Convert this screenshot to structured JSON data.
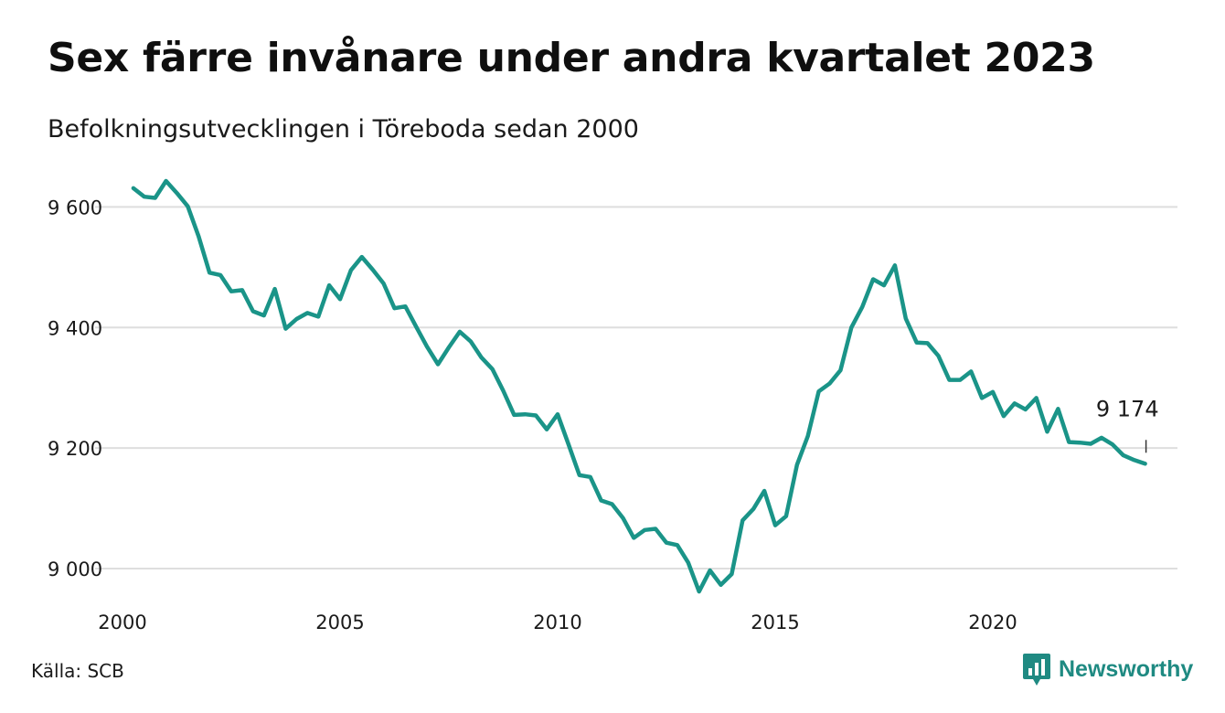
{
  "title": "Sex färre invånare under andra kvartalet 2023",
  "subtitle": "Befolkningsutvecklingen i Töreboda sedan 2000",
  "source": "Källa: SCB",
  "brand": {
    "name": "Newsworthy",
    "icon": "newsworthy-logo-icon"
  },
  "colors": {
    "line": "#1a9488",
    "grid": "#dedede",
    "brand": "#1f8a82"
  },
  "chart_data": {
    "type": "line",
    "title": "Sex färre invånare under andra kvartalet 2023",
    "subtitle": "Befolkningsutvecklingen i Töreboda sedan 2000",
    "x_start": 2000.25,
    "x_step": 0.25,
    "x_ticks": [
      2000,
      2005,
      2010,
      2015,
      2020
    ],
    "x_tick_labels": [
      "2000",
      "2005",
      "2010",
      "2015",
      "2020"
    ],
    "xlim": [
      2000,
      2023.5
    ],
    "y_ticks": [
      9000,
      9200,
      9400,
      9600
    ],
    "y_tick_labels": [
      "9 000",
      "9 200",
      "9 400",
      "9 600"
    ],
    "ylim": [
      8950,
      9640
    ],
    "grid": "horizontal",
    "legend": "none",
    "series": [
      {
        "values": [
          9631,
          9617,
          9615,
          9643,
          9623,
          9601,
          9551,
          9491,
          9487,
          9460,
          9462,
          9427,
          9420,
          9464,
          9398,
          9414,
          9424,
          9418,
          9470,
          9447,
          9495,
          9517,
          9496,
          9473,
          9432,
          9435,
          9401,
          9368,
          9339,
          9367,
          9393,
          9377,
          9350,
          9331,
          9295,
          9255,
          9256,
          9254,
          9231,
          9256,
          9206,
          9155,
          9152,
          9113,
          9107,
          9084,
          9051,
          9064,
          9066,
          9043,
          9039,
          9010,
          8962,
          8997,
          8973,
          8991,
          9080,
          9099,
          9129,
          9072,
          9087,
          9172,
          9220,
          9294,
          9307,
          9329,
          9400,
          9434,
          9480,
          9470,
          9503,
          9415,
          9375,
          9374,
          9353,
          9313,
          9313,
          9327,
          9283,
          9293,
          9253,
          9274,
          9264,
          9283,
          9227,
          9265,
          9210,
          9209,
          9207,
          9217,
          9206,
          9188,
          9180,
          9174
        ]
      }
    ],
    "annotation": {
      "label": "9 174",
      "x": 2023.5,
      "y": 9174
    }
  }
}
